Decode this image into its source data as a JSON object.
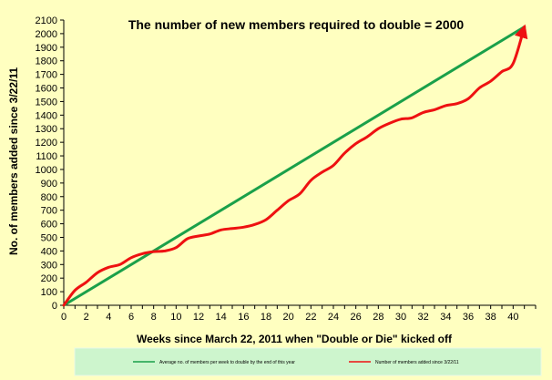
{
  "chart_data": {
    "type": "line",
    "title": "The number of new members required to double = 2000",
    "xlabel": "Weeks since March 22, 2011 when \"Double or Die\" kicked off",
    "ylabel": "No. of  members added since 3/22/11",
    "xlim": [
      0,
      42
    ],
    "ylim": [
      0,
      2100
    ],
    "x_ticks": [
      0,
      2,
      4,
      6,
      8,
      10,
      12,
      14,
      16,
      18,
      20,
      22,
      24,
      26,
      28,
      30,
      32,
      34,
      36,
      38,
      40
    ],
    "y_ticks": [
      0,
      100,
      200,
      300,
      400,
      500,
      600,
      700,
      800,
      900,
      1000,
      1100,
      1200,
      1300,
      1400,
      1500,
      1600,
      1700,
      1800,
      1900,
      2000,
      2100
    ],
    "grid": false,
    "legend_position": "bottom",
    "series": [
      {
        "name": "Average no. of members per week to double by the end of this year",
        "color": "#1aa04a",
        "x": [
          0,
          41
        ],
        "y": [
          0,
          2050
        ]
      },
      {
        "name": "Number of members added since 3/22/11",
        "color": "#ee1111",
        "arrow_end": true,
        "x": [
          0,
          1,
          2,
          3,
          4,
          5,
          6,
          7,
          8,
          9,
          10,
          11,
          12,
          13,
          14,
          15,
          16,
          17,
          18,
          19,
          20,
          21,
          22,
          23,
          24,
          25,
          26,
          27,
          28,
          29,
          30,
          31,
          32,
          33,
          34,
          35,
          36,
          37,
          38,
          39,
          40,
          41
        ],
        "y": [
          0,
          110,
          170,
          240,
          280,
          300,
          350,
          380,
          395,
          400,
          425,
          490,
          510,
          525,
          555,
          565,
          575,
          595,
          630,
          700,
          770,
          820,
          920,
          980,
          1030,
          1120,
          1190,
          1240,
          1300,
          1340,
          1370,
          1380,
          1420,
          1440,
          1470,
          1485,
          1520,
          1600,
          1650,
          1720,
          1780,
          2050
        ]
      }
    ]
  }
}
